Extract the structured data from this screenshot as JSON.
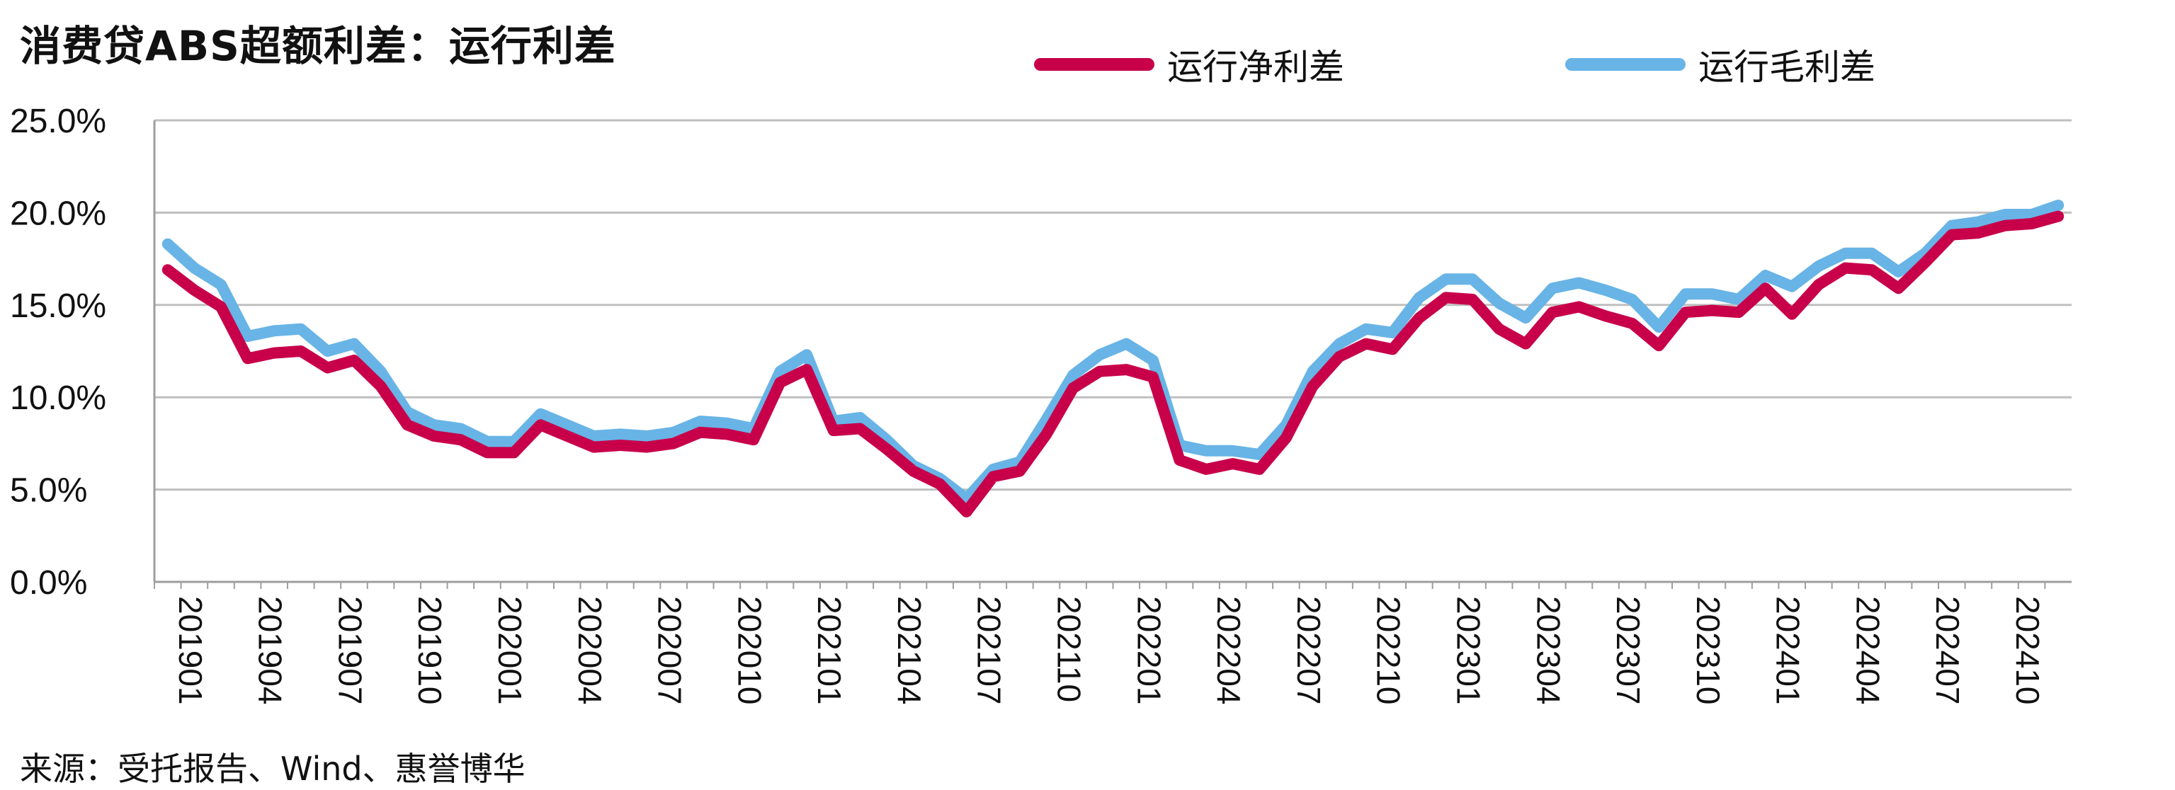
{
  "title": "消费贷ABS超额利差：运行利差",
  "source": "来源：受托报告、Wind、惠誉博华",
  "colors": {
    "net": "#C8004A",
    "gross": "#68B4E6",
    "grid": "#BFBFBF"
  },
  "legend": [
    {
      "label": "运行净利差",
      "color": "#C8004A"
    },
    {
      "label": "运行毛利差",
      "color": "#68B4E6"
    }
  ],
  "chart_data": {
    "type": "line",
    "title": "消费贷ABS超额利差：运行利差",
    "xlabel": "",
    "ylabel": "",
    "ylim": [
      0,
      25
    ],
    "y_ticks": [
      "0.0%",
      "5.0%",
      "10.0%",
      "15.0%",
      "20.0%",
      "25.0%"
    ],
    "y_tick_values": [
      0,
      5,
      10,
      15,
      20,
      25
    ],
    "x_tick_labels": [
      "201901",
      "201904",
      "201907",
      "201910",
      "202001",
      "202004",
      "202007",
      "202010",
      "202101",
      "202104",
      "202107",
      "202110",
      "202201",
      "202204",
      "202207",
      "202210",
      "202301",
      "202304",
      "202307",
      "202310",
      "202401",
      "202404",
      "202407",
      "202410"
    ],
    "x_tick_every": 3,
    "grid": true,
    "legend_position": "top-right",
    "x": [
      "201901",
      "201902",
      "201903",
      "201904",
      "201905",
      "201906",
      "201907",
      "201908",
      "201909",
      "201910",
      "201911",
      "201912",
      "202001",
      "202002",
      "202003",
      "202004",
      "202005",
      "202006",
      "202007",
      "202008",
      "202009",
      "202010",
      "202011",
      "202012",
      "202101",
      "202102",
      "202103",
      "202104",
      "202105",
      "202106",
      "202107",
      "202108",
      "202109",
      "202110",
      "202111",
      "202112",
      "202201",
      "202202",
      "202203",
      "202204",
      "202205",
      "202206",
      "202207",
      "202208",
      "202209",
      "202210",
      "202211",
      "202212",
      "202301",
      "202302",
      "202303",
      "202304",
      "202305",
      "202306",
      "202307",
      "202308",
      "202309",
      "202310",
      "202311",
      "202312",
      "202401",
      "202402",
      "202403",
      "202404",
      "202405",
      "202406",
      "202407",
      "202408",
      "202409",
      "202410",
      "202411",
      "202412"
    ],
    "series": [
      {
        "name": "运行净利差",
        "values": [
          16.9,
          15.8,
          14.9,
          12.1,
          12.4,
          12.5,
          11.6,
          12.0,
          10.6,
          8.5,
          7.9,
          7.7,
          7.0,
          7.0,
          8.5,
          7.9,
          7.3,
          7.4,
          7.3,
          7.5,
          8.1,
          8.0,
          7.7,
          10.8,
          11.5,
          8.2,
          8.3,
          7.2,
          6.0,
          5.3,
          3.8,
          5.7,
          6.0,
          8.0,
          10.5,
          11.4,
          11.5,
          11.1,
          6.6,
          6.1,
          6.4,
          6.1,
          7.8,
          10.6,
          12.2,
          12.9,
          12.6,
          14.3,
          15.4,
          15.3,
          13.7,
          12.9,
          14.6,
          14.9,
          14.4,
          14.0,
          12.8,
          14.6,
          14.7,
          14.6,
          15.9,
          14.5,
          16.1,
          17.0,
          16.9,
          15.9,
          17.3,
          18.8,
          18.9,
          19.3,
          19.4,
          19.8
        ]
      },
      {
        "name": "运行毛利差",
        "values": [
          18.3,
          17.0,
          16.1,
          13.3,
          13.6,
          13.7,
          12.5,
          12.9,
          11.4,
          9.2,
          8.5,
          8.3,
          7.6,
          7.6,
          9.1,
          8.5,
          7.9,
          8.0,
          7.9,
          8.1,
          8.7,
          8.6,
          8.3,
          11.4,
          12.3,
          8.7,
          8.9,
          7.7,
          6.3,
          5.6,
          4.5,
          6.1,
          6.5,
          8.8,
          11.2,
          12.3,
          12.9,
          12.0,
          7.4,
          7.1,
          7.1,
          6.9,
          8.5,
          11.4,
          12.9,
          13.7,
          13.5,
          15.4,
          16.4,
          16.4,
          15.1,
          14.3,
          15.9,
          16.2,
          15.8,
          15.3,
          13.8,
          15.6,
          15.6,
          15.3,
          16.6,
          16.0,
          17.1,
          17.8,
          17.8,
          16.8,
          17.8,
          19.3,
          19.5,
          19.9,
          19.9,
          20.4
        ]
      }
    ]
  }
}
